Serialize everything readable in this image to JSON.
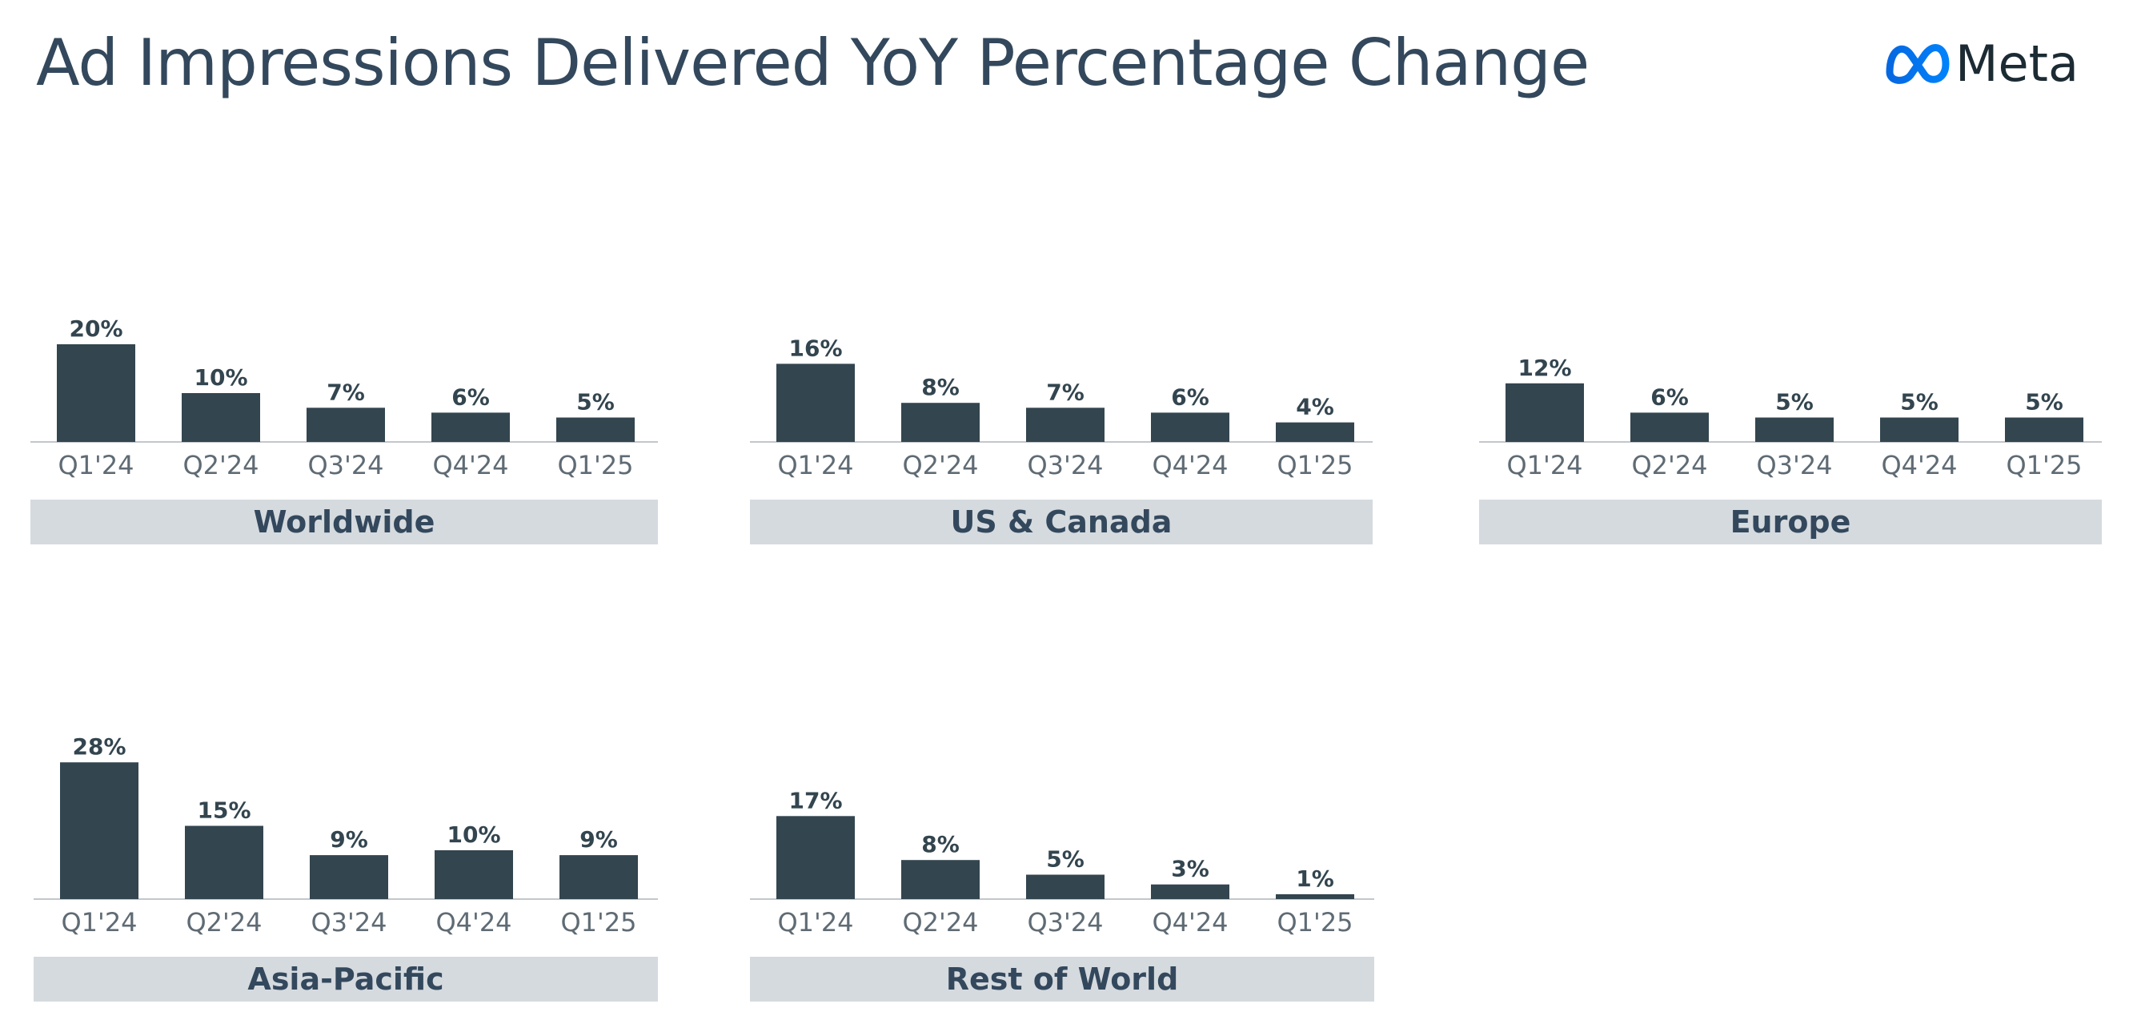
{
  "title": "Ad Impressions Delivered YoY Percentage Change",
  "logo": {
    "text": "Meta",
    "icon": "meta-infinity-logo",
    "gradient": [
      "#0668e1",
      "#0082fb"
    ],
    "text_color": "#1c2b33"
  },
  "colors": {
    "bar": "#33454f",
    "band": "#d5dadf",
    "title": "#33485c",
    "tick": "#5f6b74"
  },
  "chart_data": [
    {
      "type": "bar",
      "region": "Worldwide",
      "categories": [
        "Q1'24",
        "Q2'24",
        "Q3'24",
        "Q4'24",
        "Q1'25"
      ],
      "values": [
        20,
        10,
        7,
        6,
        5
      ],
      "labels": [
        "20%",
        "10%",
        "7%",
        "6%",
        "5%"
      ],
      "unit": "%"
    },
    {
      "type": "bar",
      "region": "US & Canada",
      "categories": [
        "Q1'24",
        "Q2'24",
        "Q3'24",
        "Q4'24",
        "Q1'25"
      ],
      "values": [
        16,
        8,
        7,
        6,
        4
      ],
      "labels": [
        "16%",
        "8%",
        "7%",
        "6%",
        "4%"
      ],
      "unit": "%"
    },
    {
      "type": "bar",
      "region": "Europe",
      "categories": [
        "Q1'24",
        "Q2'24",
        "Q3'24",
        "Q4'24",
        "Q1'25"
      ],
      "values": [
        12,
        6,
        5,
        5,
        5
      ],
      "labels": [
        "12%",
        "6%",
        "5%",
        "5%",
        "5%"
      ],
      "unit": "%"
    },
    {
      "type": "bar",
      "region": "Asia-Pacific",
      "categories": [
        "Q1'24",
        "Q2'24",
        "Q3'24",
        "Q4'24",
        "Q1'25"
      ],
      "values": [
        28,
        15,
        9,
        10,
        9
      ],
      "labels": [
        "28%",
        "15%",
        "9%",
        "10%",
        "9%"
      ],
      "unit": "%"
    },
    {
      "type": "bar",
      "region": "Rest of World",
      "categories": [
        "Q1'24",
        "Q2'24",
        "Q3'24",
        "Q4'24",
        "Q1'25"
      ],
      "values": [
        17,
        8,
        5,
        3,
        1
      ],
      "labels": [
        "17%",
        "8%",
        "5%",
        "3%",
        "1%"
      ],
      "unit": "%"
    }
  ]
}
